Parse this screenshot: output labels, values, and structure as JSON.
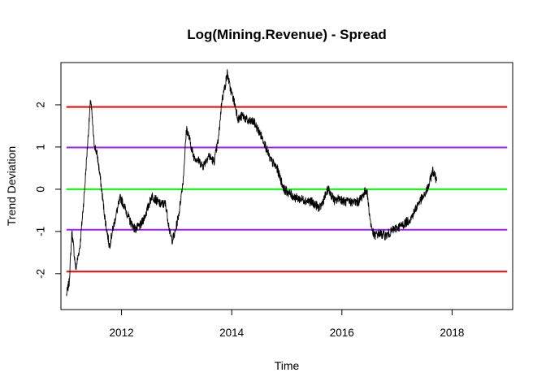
{
  "chart_data": {
    "type": "line",
    "title": "Log(Mining.Revenue) - Spread",
    "xlabel": "Time",
    "ylabel": "Trend Deviation",
    "xlim": [
      2010.9,
      2019.1
    ],
    "ylim": [
      -2.85,
      3.0
    ],
    "x_ticks": [
      2012,
      2014,
      2016,
      2018
    ],
    "x_tick_labels": [
      "2012",
      "2014",
      "2016",
      "2018"
    ],
    "y_ticks": [
      -2,
      -1,
      0,
      1,
      2
    ],
    "y_tick_labels": [
      "-2",
      "-1",
      "0",
      "1",
      "2"
    ],
    "grid": false,
    "colors": {
      "series": "#000000",
      "band_2sd": "#ff0000",
      "band_1sd": "#a020f0",
      "band_mean": "#00ff00"
    },
    "reference_lines": [
      {
        "y": 1.95,
        "color": "#ff0000"
      },
      {
        "y": 0.99,
        "color": "#a020f0"
      },
      {
        "y": 0.0,
        "color": "#00ff00"
      },
      {
        "y": -0.96,
        "color": "#a020f0"
      },
      {
        "y": -1.95,
        "color": "#ff0000"
      }
    ],
    "reference_x_range": [
      2011.0,
      2019.0
    ],
    "series": [
      {
        "x": [
          2011.0,
          2011.05,
          2011.1,
          2011.17,
          2011.25,
          2011.33,
          2011.38,
          2011.44,
          2011.5,
          2011.56,
          2011.62,
          2011.7,
          2011.78,
          2011.85,
          2011.92,
          2011.98,
          2012.05,
          2012.15,
          2012.25,
          2012.35,
          2012.45,
          2012.55,
          2012.62,
          2012.7,
          2012.8,
          2012.88,
          2012.92,
          2012.97,
          2013.05,
          2013.12,
          2013.18,
          2013.24,
          2013.3,
          2013.38,
          2013.48,
          2013.58,
          2013.68,
          2013.76,
          2013.82,
          2013.88,
          2013.92,
          2013.97,
          2014.05,
          2014.12,
          2014.2,
          2014.3,
          2014.4,
          2014.48,
          2014.58,
          2014.7,
          2014.82,
          2014.95,
          2015.05,
          2015.15,
          2015.3,
          2015.45,
          2015.6,
          2015.75,
          2015.88,
          2015.95,
          2016.05,
          2016.15,
          2016.3,
          2016.45,
          2016.52,
          2016.58,
          2016.68,
          2016.8,
          2016.95,
          2017.1,
          2017.25,
          2017.4,
          2017.5,
          2017.58,
          2017.65,
          2017.72
        ],
        "values": [
          -2.5,
          -2.2,
          -1.0,
          -1.9,
          -1.3,
          0.0,
          1.0,
          2.15,
          1.1,
          0.8,
          0.2,
          -0.7,
          -1.35,
          -0.9,
          -0.5,
          -0.2,
          -0.4,
          -0.75,
          -0.95,
          -0.85,
          -0.55,
          -0.15,
          -0.25,
          -0.35,
          -0.35,
          -1.05,
          -1.2,
          -1.05,
          -0.5,
          0.25,
          1.45,
          1.15,
          0.8,
          0.7,
          0.55,
          0.8,
          0.65,
          1.2,
          2.1,
          2.45,
          2.75,
          2.4,
          2.05,
          1.65,
          1.75,
          1.6,
          1.6,
          1.4,
          1.15,
          0.7,
          0.5,
          0.0,
          -0.1,
          -0.2,
          -0.25,
          -0.3,
          -0.45,
          0.0,
          -0.3,
          -0.2,
          -0.3,
          -0.3,
          -0.3,
          0.0,
          -0.8,
          -1.1,
          -1.05,
          -1.1,
          -0.95,
          -0.85,
          -0.7,
          -0.3,
          -0.15,
          0.1,
          0.45,
          0.2
        ]
      }
    ]
  }
}
